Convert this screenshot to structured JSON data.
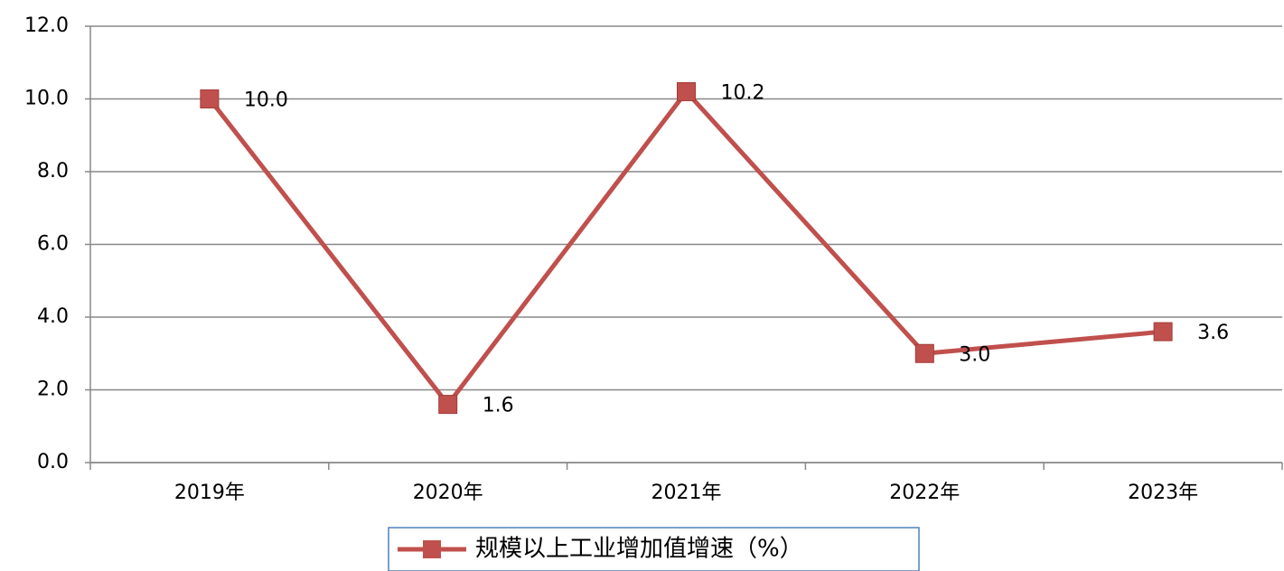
{
  "chart_data": {
    "type": "line",
    "categories": [
      "2019年",
      "2020年",
      "2021年",
      "2022年",
      "2023年"
    ],
    "series": [
      {
        "name": "规模以上工业增加值增速（%）",
        "color": "#c0504d",
        "values": [
          10.0,
          1.6,
          10.2,
          3.0,
          3.6
        ],
        "value_labels": [
          "10.0",
          "1.6",
          "10.2",
          "3.0",
          "3.6"
        ]
      }
    ],
    "ylim": [
      0,
      12
    ],
    "yticks": [
      {
        "value": 0,
        "label": "0.0"
      },
      {
        "value": 2,
        "label": "2.0"
      },
      {
        "value": 4,
        "label": "4.0"
      },
      {
        "value": 6,
        "label": "6.0"
      },
      {
        "value": 8,
        "label": "8.0"
      },
      {
        "value": 10,
        "label": "10.0"
      },
      {
        "value": 12,
        "label": "12.0"
      }
    ],
    "grid": true,
    "legend": "bottom"
  }
}
